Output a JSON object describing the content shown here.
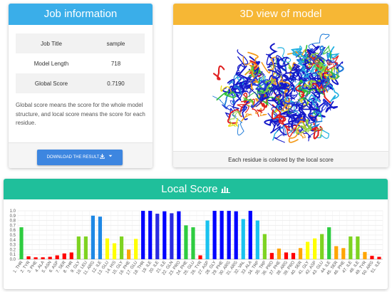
{
  "job": {
    "title": "Job information",
    "rows": [
      {
        "label": "Job Title",
        "value": "sample"
      },
      {
        "label": "Model Length",
        "value": "718"
      },
      {
        "label": "Global Score",
        "value": "0.7190"
      }
    ],
    "note": "Global score means the score for the whole model structure, and local score means the score for each residue.",
    "download_label": "DOWNLOAD THE RESULT"
  },
  "view": {
    "title": "3D view of model",
    "caption": "Each residue is colored by the local score"
  },
  "local": {
    "title": "Local Score"
  },
  "chart_data": {
    "type": "bar",
    "ylim": [
      0,
      1.0
    ],
    "yticks": [
      "0.0",
      "0.1",
      "0.2",
      "0.3",
      "0.4",
      "0.5",
      "0.6",
      "0.7",
      "0.8",
      "0.9",
      "1.0"
    ],
    "grid": true,
    "categories": [
      "1. THR",
      "2. TYR",
      "3. PHE",
      "4. ALA",
      "5. ASN",
      "6. ASP",
      "7. SER",
      "8. THR",
      "9. GLY",
      "10. LEU",
      "11. ARG",
      "12. ILE",
      "13. GLU",
      "14. HIS",
      "15. GLY",
      "16. PHE",
      "17. GLU",
      "18. THR",
      "19. ILE",
      "20. ILE",
      "21. ILE",
      "22. GLN",
      "23. PRO",
      "24. PHE",
      "25. GLU",
      "26. TYR",
      "27. ASP",
      "28. GLY",
      "29. PHE",
      "30. ARG",
      "31. ARG",
      "32. VAL",
      "33. ALA",
      "34. TRP",
      "35. TRP",
      "36. PRO",
      "37. PHE",
      "38. ARG",
      "39. PRO",
      "40. SER",
      "41. GLY",
      "42. ASP",
      "43. GLU",
      "44. ILE",
      "45. SER",
      "46. PHE",
      "47. ILE",
      "48. ILE",
      "49. TYR",
      "50. ARG",
      "51. ILE"
    ],
    "values": [
      0.66,
      0.06,
      0.04,
      0.04,
      0.05,
      0.08,
      0.12,
      0.14,
      0.47,
      0.47,
      0.9,
      0.88,
      0.43,
      0.33,
      0.47,
      0.2,
      0.42,
      1.0,
      1.0,
      0.94,
      0.99,
      0.95,
      0.99,
      0.7,
      0.66,
      0.08,
      0.8,
      1.0,
      1.0,
      1.0,
      0.99,
      0.83,
      1.0,
      0.8,
      0.52,
      0.13,
      0.22,
      0.14,
      0.13,
      0.23,
      0.36,
      0.43,
      0.52,
      0.66,
      0.27,
      0.23,
      0.47,
      0.47,
      0.15,
      0.07,
      0.05
    ],
    "color_scale": [
      "#ff0000",
      "#ffa500",
      "#ffff00",
      "#00cc00",
      "#00bfff",
      "#0000ff"
    ]
  }
}
